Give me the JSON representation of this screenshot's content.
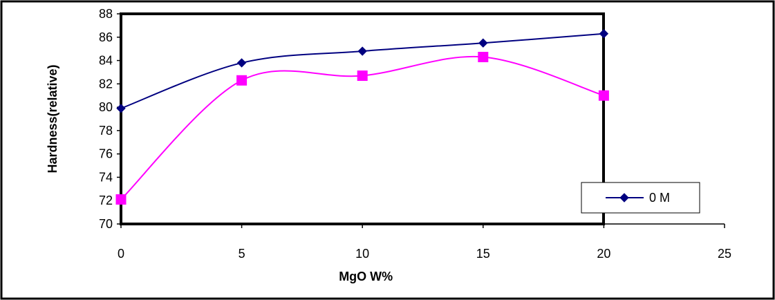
{
  "chart_data": {
    "type": "line",
    "xlabel": "MgO W%",
    "ylabel": "Hardness(relative)",
    "xlim": [
      0,
      25
    ],
    "ylim": [
      70,
      88
    ],
    "xticks": [
      0,
      5,
      10,
      15,
      20,
      25
    ],
    "yticks": [
      70,
      72,
      74,
      76,
      78,
      80,
      82,
      84,
      86,
      88
    ],
    "grid": false,
    "legend_position": "bottom-right",
    "series": [
      {
        "name": "0 M",
        "marker": "diamond",
        "color": "#000080",
        "x": [
          0,
          5,
          10,
          15,
          20
        ],
        "values": [
          79.9,
          83.8,
          84.8,
          85.5,
          86.3
        ]
      },
      {
        "marker": "square",
        "color": "#FF00FF",
        "x": [
          0,
          5,
          10,
          15,
          20
        ],
        "values": [
          72.1,
          82.3,
          82.7,
          84.3,
          81.0
        ]
      }
    ]
  }
}
